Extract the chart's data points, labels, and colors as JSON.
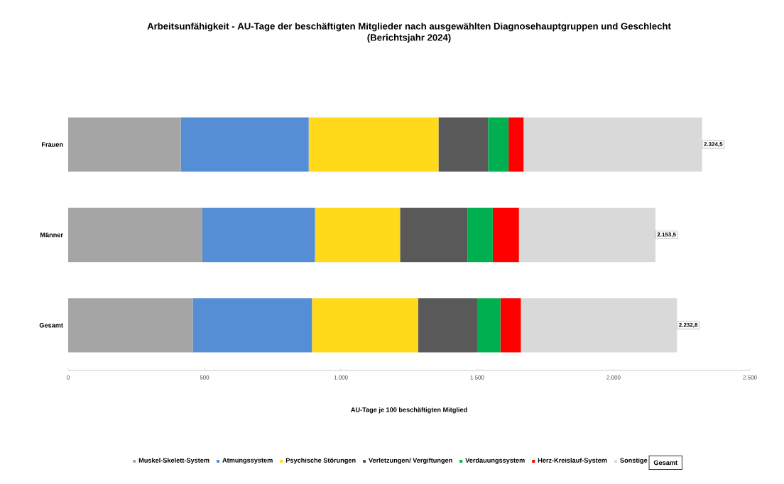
{
  "chart_data": {
    "type": "bar",
    "orientation": "horizontal",
    "stacked": true,
    "title": "Arbeitsunfähigkeit - AU-Tage der beschäftigten Mitglieder nach ausgewählten Diagnosehauptgruppen und Geschlecht",
    "subtitle": "(Berichtsjahr 2024)",
    "xlabel": "AU-Tage je 100 beschäftigten Mitglied",
    "categories": [
      "Frauen",
      "Männer",
      "Gesamt"
    ],
    "series": [
      {
        "name": "Muskel-Skelett-System",
        "color": "#a5a5a5",
        "values": [
          413,
          492,
          457
        ]
      },
      {
        "name": "Atmungssystem",
        "color": "#558ed5",
        "values": [
          469,
          413,
          437
        ]
      },
      {
        "name": "Psychische Störungen",
        "color": "#ffd91a",
        "values": [
          476,
          312,
          389
        ]
      },
      {
        "name": "Verletzungen/ Vergiftungen",
        "color": "#595959",
        "values": [
          182,
          247,
          217
        ]
      },
      {
        "name": "Verdauungssystem",
        "color": "#00b050",
        "values": [
          75,
          93,
          85
        ]
      },
      {
        "name": "Herz-Kreislauf-System",
        "color": "#ff0000",
        "values": [
          55,
          96,
          75
        ]
      },
      {
        "name": "Sonstige",
        "color": "#d9d9d9",
        "values": [
          654.5,
          500.5,
          572.8
        ]
      }
    ],
    "totals": [
      "2.324,5",
      "2.153,5",
      "2.232,8"
    ],
    "annotations": [
      "Gesamt"
    ],
    "xlim": [
      0,
      2500
    ],
    "xticks": [
      0,
      500,
      {
        "value": 1000,
        "label": "1.000"
      },
      {
        "value": 1500,
        "label": "1.500"
      },
      {
        "value": 2000,
        "label": "2.000"
      },
      {
        "value": 2500,
        "label": "2.500"
      }
    ],
    "grid": false,
    "legend": "bottom"
  }
}
